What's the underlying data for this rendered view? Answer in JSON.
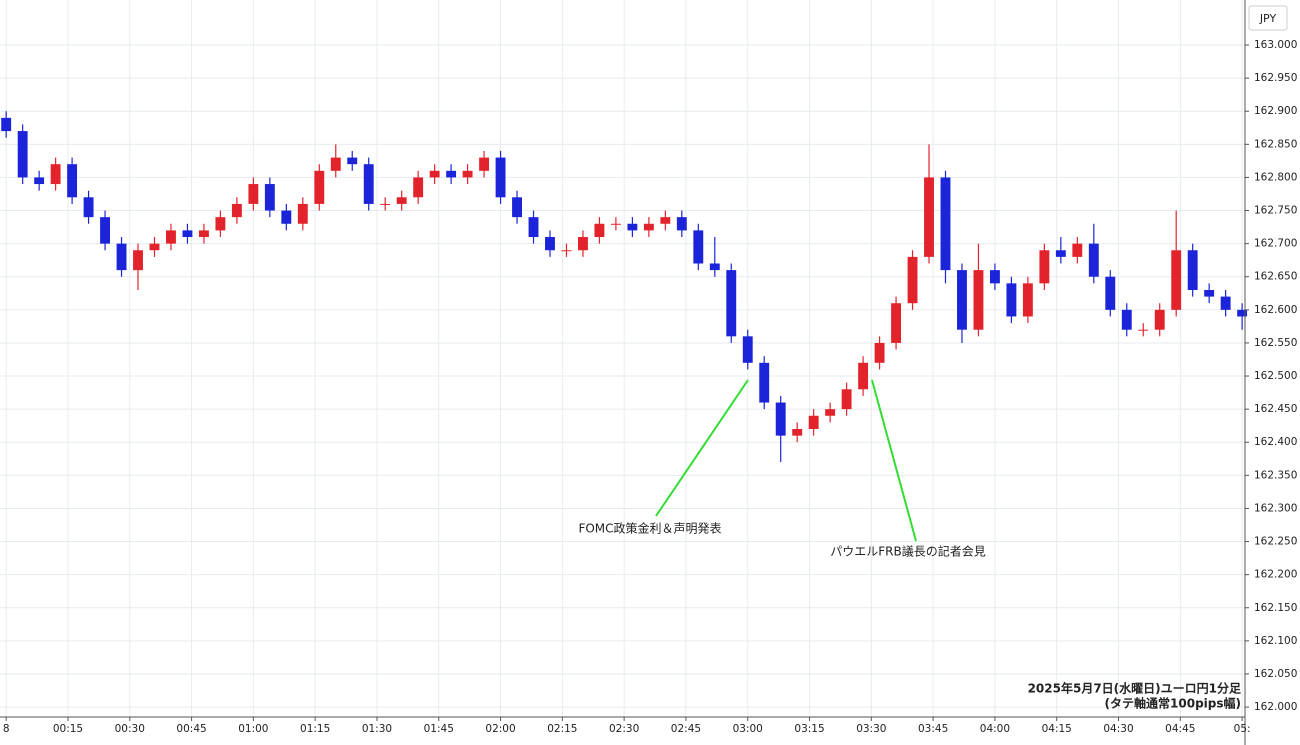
{
  "chart_data": {
    "type": "candlestick",
    "currency": "JPY",
    "caption": [
      "2025年5月7日(水曜日)ユーロ円1分足",
      "(タテ軸通常100pips幅)"
    ],
    "annotations": [
      "FOMC政策金利＆声明発表",
      "パウエルFRB議長の記者会見"
    ],
    "up_color": "#e3232b",
    "down_color": "#1b24d8",
    "grid": true,
    "xlim": [
      -1.5,
      300.7
    ],
    "xticks": [
      {
        "value": 0,
        "label": "8"
      },
      {
        "value": 15,
        "label": "00:15"
      },
      {
        "value": 30,
        "label": "00:30"
      },
      {
        "value": 45,
        "label": "00:45"
      },
      {
        "value": 60,
        "label": "01:00"
      },
      {
        "value": 75,
        "label": "01:15"
      },
      {
        "value": 90,
        "label": "01:30"
      },
      {
        "value": 105,
        "label": "01:45"
      },
      {
        "value": 120,
        "label": "02:00"
      },
      {
        "value": 135,
        "label": "02:15"
      },
      {
        "value": 150,
        "label": "02:30"
      },
      {
        "value": 165,
        "label": "02:45"
      },
      {
        "value": 180,
        "label": "03:00"
      },
      {
        "value": 195,
        "label": "03:15"
      },
      {
        "value": 210,
        "label": "03:30"
      },
      {
        "value": 225,
        "label": "03:45"
      },
      {
        "value": 240,
        "label": "04:00"
      },
      {
        "value": 255,
        "label": "04:15"
      },
      {
        "value": 270,
        "label": "04:30"
      },
      {
        "value": 285,
        "label": "04:45"
      },
      {
        "value": 300,
        "label": "05:"
      }
    ],
    "ylim": [
      161.985,
      163.068
    ],
    "yticks": [
      {
        "value": 162.0,
        "label": "162.000"
      },
      {
        "value": 162.05,
        "label": "162.050"
      },
      {
        "value": 162.1,
        "label": "162.100"
      },
      {
        "value": 162.15,
        "label": "162.150"
      },
      {
        "value": 162.2,
        "label": "162.200"
      },
      {
        "value": 162.25,
        "label": "162.250"
      },
      {
        "value": 162.3,
        "label": "162.300"
      },
      {
        "value": 162.35,
        "label": "162.350"
      },
      {
        "value": 162.4,
        "label": "162.400"
      },
      {
        "value": 162.45,
        "label": "162.450"
      },
      {
        "value": 162.5,
        "label": "162.500"
      },
      {
        "value": 162.55,
        "label": "162.550"
      },
      {
        "value": 162.6,
        "label": "162.600"
      },
      {
        "value": 162.65,
        "label": "162.650"
      },
      {
        "value": 162.7,
        "label": "162.700"
      },
      {
        "value": 162.75,
        "label": "162.750"
      },
      {
        "value": 162.8,
        "label": "162.800"
      },
      {
        "value": 162.85,
        "label": "162.850"
      },
      {
        "value": 162.9,
        "label": "162.900"
      },
      {
        "value": 162.95,
        "label": "162.950"
      },
      {
        "value": 163.0,
        "label": "163.000"
      }
    ],
    "x": [
      0,
      4,
      8,
      12,
      16,
      20,
      24,
      28,
      32,
      36,
      40,
      44,
      48,
      52,
      56,
      60,
      64,
      68,
      72,
      76,
      80,
      84,
      88,
      92,
      96,
      100,
      104,
      108,
      112,
      116,
      120,
      124,
      128,
      132,
      136,
      140,
      144,
      148,
      152,
      156,
      160,
      164,
      168,
      172,
      176,
      180,
      184,
      188,
      192,
      196,
      200,
      204,
      208,
      212,
      216,
      220,
      224,
      228,
      232,
      236,
      240,
      244,
      248,
      252,
      256,
      260,
      264,
      268,
      272,
      276,
      280,
      284,
      288,
      292,
      296,
      300
    ],
    "open": [
      162.89,
      162.87,
      162.8,
      162.79,
      162.82,
      162.77,
      162.74,
      162.7,
      162.66,
      162.69,
      162.7,
      162.72,
      162.71,
      162.72,
      162.74,
      162.76,
      162.79,
      162.75,
      162.73,
      162.76,
      162.81,
      162.83,
      162.82,
      162.76,
      162.76,
      162.77,
      162.8,
      162.81,
      162.8,
      162.81,
      162.83,
      162.77,
      162.74,
      162.71,
      162.69,
      162.69,
      162.71,
      162.73,
      162.73,
      162.72,
      162.73,
      162.74,
      162.72,
      162.67,
      162.66,
      162.56,
      162.52,
      162.46,
      162.41,
      162.42,
      162.44,
      162.45,
      162.48,
      162.52,
      162.55,
      162.61,
      162.68,
      162.8,
      162.66,
      162.57,
      162.66,
      162.64,
      162.59,
      162.64,
      162.69,
      162.68,
      162.7,
      162.65,
      162.6,
      162.57,
      162.57,
      162.6,
      162.69,
      162.63,
      162.62,
      162.6
    ],
    "high": [
      162.9,
      162.88,
      162.81,
      162.83,
      162.83,
      162.78,
      162.75,
      162.71,
      162.7,
      162.71,
      162.73,
      162.73,
      162.73,
      162.75,
      162.77,
      162.8,
      162.8,
      162.76,
      162.77,
      162.82,
      162.85,
      162.84,
      162.83,
      162.77,
      162.78,
      162.81,
      162.82,
      162.82,
      162.82,
      162.84,
      162.84,
      162.78,
      162.75,
      162.72,
      162.7,
      162.72,
      162.74,
      162.74,
      162.74,
      162.74,
      162.75,
      162.75,
      162.73,
      162.71,
      162.67,
      162.57,
      162.53,
      162.47,
      162.43,
      162.45,
      162.46,
      162.49,
      162.53,
      162.56,
      162.62,
      162.69,
      162.85,
      162.81,
      162.67,
      162.7,
      162.67,
      162.65,
      162.65,
      162.7,
      162.71,
      162.71,
      162.73,
      162.66,
      162.61,
      162.58,
      162.61,
      162.75,
      162.7,
      162.64,
      162.63,
      162.61
    ],
    "low": [
      162.86,
      162.79,
      162.78,
      162.78,
      162.76,
      162.73,
      162.69,
      162.65,
      162.63,
      162.68,
      162.69,
      162.7,
      162.7,
      162.71,
      162.73,
      162.75,
      162.74,
      162.72,
      162.72,
      162.75,
      162.8,
      162.81,
      162.75,
      162.75,
      162.75,
      162.76,
      162.79,
      162.79,
      162.79,
      162.8,
      162.76,
      162.73,
      162.7,
      162.68,
      162.68,
      162.68,
      162.7,
      162.72,
      162.71,
      162.71,
      162.72,
      162.71,
      162.66,
      162.65,
      162.55,
      162.51,
      162.45,
      162.37,
      162.4,
      162.41,
      162.43,
      162.44,
      162.47,
      162.51,
      162.54,
      162.6,
      162.67,
      162.64,
      162.55,
      162.56,
      162.63,
      162.58,
      162.58,
      162.63,
      162.67,
      162.67,
      162.64,
      162.59,
      162.56,
      162.56,
      162.56,
      162.59,
      162.62,
      162.61,
      162.59,
      162.57
    ],
    "close": [
      162.87,
      162.8,
      162.79,
      162.82,
      162.77,
      162.74,
      162.7,
      162.66,
      162.69,
      162.7,
      162.72,
      162.71,
      162.72,
      162.74,
      162.76,
      162.79,
      162.75,
      162.73,
      162.76,
      162.81,
      162.83,
      162.82,
      162.76,
      162.76,
      162.77,
      162.8,
      162.81,
      162.8,
      162.81,
      162.83,
      162.77,
      162.74,
      162.71,
      162.69,
      162.69,
      162.71,
      162.73,
      162.73,
      162.72,
      162.73,
      162.74,
      162.72,
      162.67,
      162.66,
      162.56,
      162.52,
      162.46,
      162.41,
      162.42,
      162.44,
      162.45,
      162.48,
      162.52,
      162.55,
      162.61,
      162.68,
      162.8,
      162.66,
      162.57,
      162.66,
      162.64,
      162.59,
      162.64,
      162.69,
      162.68,
      162.7,
      162.65,
      162.6,
      162.57,
      162.57,
      162.6,
      162.69,
      162.63,
      162.62,
      162.6,
      162.59
    ]
  }
}
